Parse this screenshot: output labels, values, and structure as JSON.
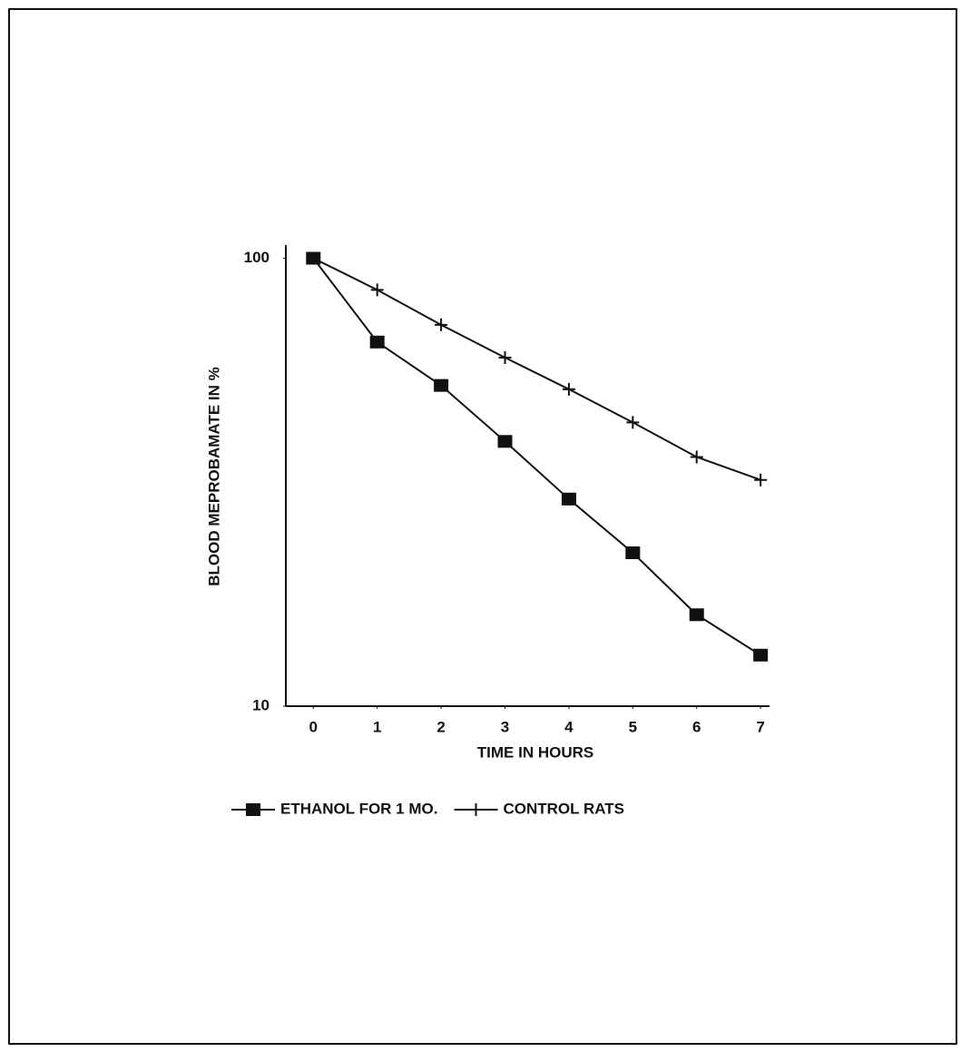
{
  "chart_data": {
    "type": "line",
    "x_label": "TIME IN HOURS",
    "y_label": "BLOOD MEPROBAMATE IN %",
    "x": [
      0,
      1,
      2,
      3,
      4,
      5,
      6,
      7
    ],
    "series": [
      {
        "name": "ETHANOL FOR 1 MO.",
        "color": "#111111",
        "marker": "square",
        "values": [
          100,
          65,
          52,
          39,
          29,
          22,
          16,
          13
        ]
      },
      {
        "name": "CONTROL RATS",
        "color": "#111111",
        "marker": "plus",
        "values": [
          100,
          85,
          71,
          60,
          51,
          43,
          36,
          32
        ]
      }
    ],
    "xlim": [
      -0.43,
      7.14
    ],
    "xticks": [
      0,
      1,
      2,
      3,
      4,
      5,
      6,
      7
    ],
    "ylim": [
      10,
      107
    ],
    "yticks": [
      10,
      100
    ],
    "log_y": true,
    "grid": false
  }
}
